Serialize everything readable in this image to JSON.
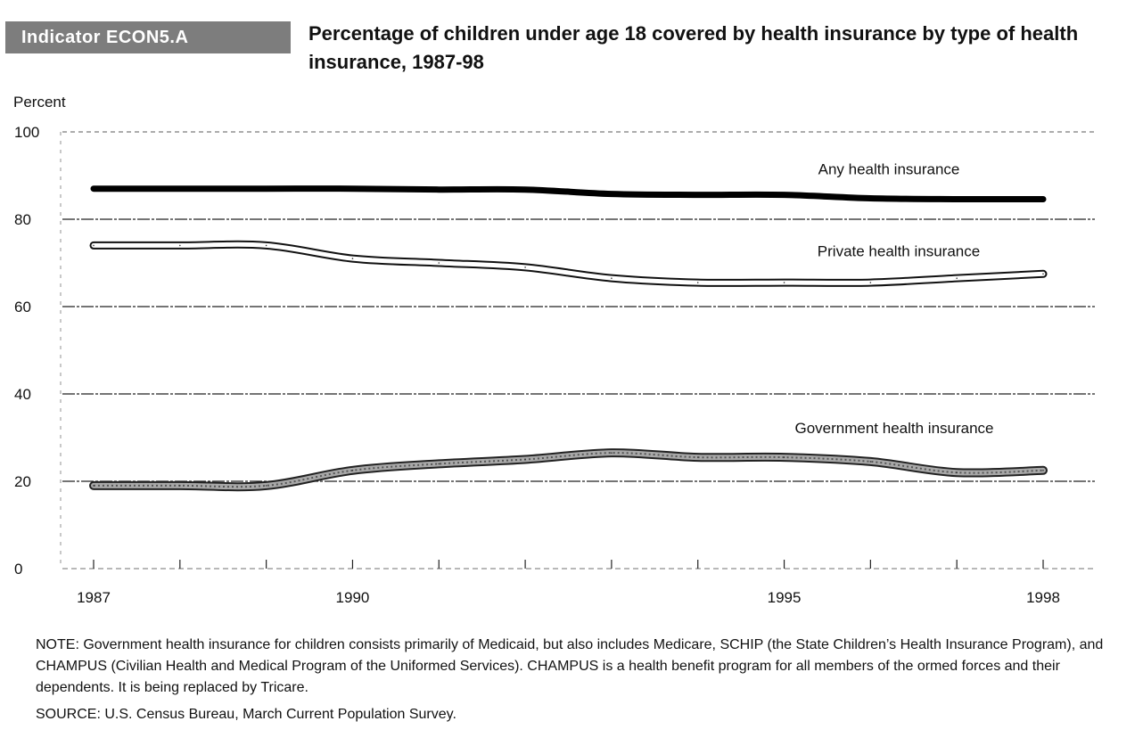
{
  "header": {
    "indicator_badge": "Indicator ECON5.A",
    "title": "Percentage of children under age 18 covered by health insurance by type of health insurance, 1987-98"
  },
  "notes": {
    "note": "NOTE: Government health insurance for children consists primarily of Medicaid, but also includes Medicare, SCHIP (the State Children’s Health Insurance Program), and CHAMPUS (Civilian Health and Medical Program of the Uniformed Services). CHAMPUS is a health benefit program for all members of the ormed forces and their dependents. It is being replaced by Tricare.",
    "source": "SOURCE: U.S. Census Bureau, March Current Population Survey."
  },
  "chart_data": {
    "type": "line",
    "ylabel": "Percent",
    "ylim": [
      0,
      100
    ],
    "yticks": [
      0,
      20,
      40,
      60,
      80,
      100
    ],
    "xlim": [
      1987,
      1998
    ],
    "xticks": [
      1987,
      1990,
      1995,
      1998
    ],
    "grid": true,
    "x": [
      1987,
      1988,
      1989,
      1990,
      1991,
      1992,
      1993,
      1994,
      1995,
      1996,
      1997,
      1998
    ],
    "series": [
      {
        "name": "Any health insurance",
        "color": "#000000",
        "style": "thick-solid",
        "values": [
          87,
          87,
          87,
          87,
          86.8,
          86.8,
          85.8,
          85.6,
          85.6,
          84.8,
          84.6,
          84.6
        ]
      },
      {
        "name": "Private health insurance",
        "color": "#ffffff",
        "style": "outlined",
        "values": [
          74,
          74,
          74,
          71,
          70,
          69,
          66.5,
          65.5,
          65.5,
          65.5,
          66.5,
          67.5
        ]
      },
      {
        "name": "Government health insurance",
        "color": "#a8a8a8",
        "style": "textured",
        "values": [
          19,
          19,
          19,
          22.5,
          24,
          25,
          26.5,
          25.5,
          25.5,
          24.5,
          22,
          22.5
        ]
      }
    ]
  }
}
